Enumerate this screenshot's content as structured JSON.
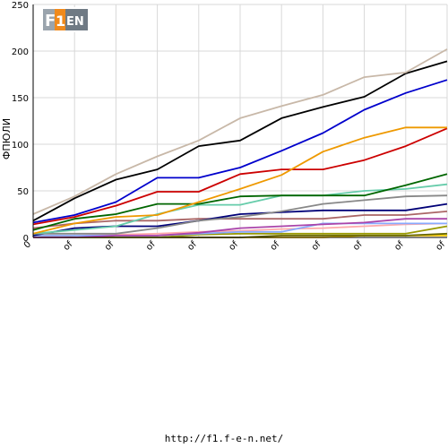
{
  "chart_data": {
    "type": "line",
    "ylabel": "ФПЮЛИ",
    "ylim": [
      0,
      250
    ],
    "yticks": [
      0,
      50,
      100,
      150,
      200,
      250
    ],
    "grid": true,
    "categories": [
      "0",
      "of",
      "of",
      "of",
      "of",
      "of",
      "of",
      "of",
      "of",
      "of",
      "of"
    ],
    "series": [
      {
        "color": "#c8b8a8",
        "values": [
          25,
          44,
          68,
          87,
          104,
          128,
          141,
          153,
          172,
          177,
          202
        ]
      },
      {
        "color": "#000000",
        "values": [
          18,
          42,
          62,
          73,
          98,
          104,
          128,
          140,
          151,
          176,
          189
        ]
      },
      {
        "color": "#0000cc",
        "values": [
          16,
          24,
          38,
          64,
          64,
          75,
          93,
          112,
          137,
          155,
          169
        ]
      },
      {
        "color": "#ee9900",
        "values": [
          4,
          15,
          22,
          24,
          38,
          52,
          67,
          92,
          107,
          118,
          118
        ]
      },
      {
        "color": "#cc0000",
        "values": [
          14,
          22,
          34,
          49,
          49,
          68,
          73,
          73,
          83,
          98,
          117
        ]
      },
      {
        "color": "#006600",
        "values": [
          8,
          20,
          25,
          36,
          36,
          44,
          45,
          45,
          45,
          56,
          68
        ]
      },
      {
        "color": "#66ccaa",
        "values": [
          4,
          8,
          12,
          25,
          35,
          35,
          45,
          45,
          50,
          52,
          57
        ]
      },
      {
        "color": "#888888",
        "values": [
          4,
          4,
          4,
          10,
          18,
          22,
          28,
          36,
          40,
          44,
          45
        ]
      },
      {
        "color": "#000077",
        "values": [
          2,
          10,
          12,
          12,
          18,
          25,
          27,
          29,
          29,
          29,
          36
        ]
      },
      {
        "color": "#aa6666",
        "values": [
          10,
          15,
          18,
          18,
          20,
          20,
          20,
          20,
          24,
          24,
          28
        ]
      },
      {
        "color": "#aa44aa",
        "values": [
          0,
          0,
          2,
          2,
          5,
          10,
          12,
          14,
          16,
          20,
          20
        ]
      },
      {
        "color": "#88aaff",
        "values": [
          2,
          2,
          2,
          2,
          4,
          6,
          6,
          15,
          15,
          15,
          15
        ]
      },
      {
        "color": "#ffaaaa",
        "values": [
          0,
          2,
          3,
          4,
          6,
          7,
          9,
          10,
          12,
          14,
          15
        ]
      },
      {
        "color": "#999900",
        "values": [
          0,
          0,
          0,
          0,
          3,
          4,
          4,
          4,
          4,
          4,
          12
        ]
      },
      {
        "color": "#666600",
        "values": [
          0,
          0,
          0,
          0,
          0,
          0,
          2,
          2,
          2,
          2,
          4
        ]
      },
      {
        "color": "#ffcc00",
        "values": [
          0,
          0,
          0,
          0,
          0,
          0,
          0,
          0,
          2,
          2,
          2
        ]
      }
    ]
  },
  "logo": {
    "text": "F1EN"
  },
  "footer": {
    "url": "http://f1.f-e-n.net/"
  }
}
